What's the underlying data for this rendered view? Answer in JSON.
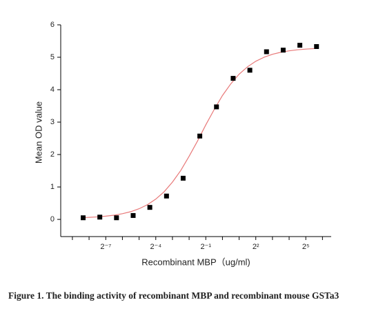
{
  "chart_data": {
    "type": "scatter",
    "xlabel": "Recombinant  MBP（ug/ml)",
    "ylabel": "Mean OD value",
    "caption": "Figure 1. The binding activity of recombinant MBP and recombinant mouse GSTa3",
    "xscale": "log",
    "x": [
      0.00305,
      0.0061,
      0.0122,
      0.0244,
      0.0488,
      0.0977,
      0.195,
      0.39,
      0.78,
      1.56,
      3.125,
      6.25,
      12.5,
      25,
      50
    ],
    "series": [
      {
        "color": "#000000",
        "values": [
          0.05,
          0.07,
          0.05,
          0.12,
          0.37,
          0.72,
          1.27,
          2.57,
          3.47,
          4.35,
          4.6,
          5.17,
          5.22,
          5.37,
          5.33
        ]
      }
    ],
    "fit": {
      "color": "#e87878",
      "x": [
        0.00276,
        0.00391,
        0.00552,
        0.00781,
        0.01105,
        0.01563,
        0.0221,
        0.03125,
        0.0442,
        0.0625,
        0.0884,
        0.125,
        0.177,
        0.25,
        0.354,
        0.5,
        0.707,
        1,
        1.414,
        2,
        2.828,
        4,
        5.657,
        8,
        11.31,
        16,
        22.63,
        32,
        45.25
      ],
      "values": [
        0.053,
        0.063,
        0.078,
        0.1,
        0.13,
        0.176,
        0.238,
        0.329,
        0.453,
        0.626,
        0.851,
        1.15,
        1.51,
        1.946,
        2.415,
        2.915,
        3.384,
        3.82,
        4.18,
        4.479,
        4.704,
        4.877,
        5.001,
        5.092,
        5.155,
        5.199,
        5.23,
        5.252,
        5.267
      ]
    },
    "xlim": [
      0.0012,
      92
    ],
    "xticks": [
      {
        "value": 0.0078125,
        "label": "2⁻⁷"
      },
      {
        "value": 0.0625,
        "label": "2⁻⁴"
      },
      {
        "value": 0.5,
        "label": "2⁻¹"
      },
      {
        "value": 4,
        "label": "2²"
      },
      {
        "value": 32,
        "label": "2⁵"
      }
    ],
    "xminorticks": [
      0.00195,
      0.0039,
      0.0156,
      0.03125,
      0.125,
      0.25,
      1,
      2,
      8,
      16,
      64
    ],
    "ylim": [
      -0.53,
      6
    ],
    "yticks": [
      0,
      1,
      2,
      3,
      4,
      5,
      6
    ],
    "grid": false
  }
}
